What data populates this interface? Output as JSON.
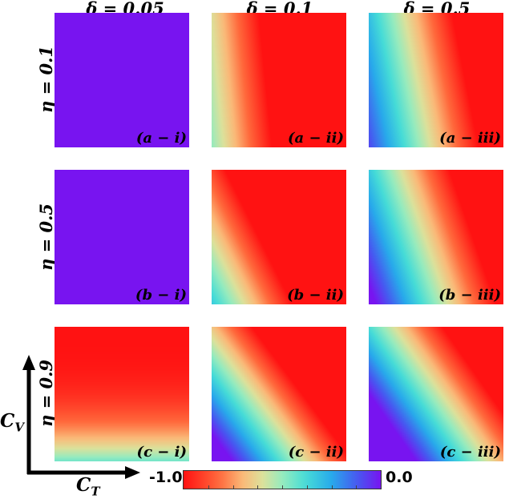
{
  "chart_data": {
    "type": "heatmap",
    "column_headers": [
      "δ = 0.05",
      "δ = 0.1",
      "δ = 0.5"
    ],
    "row_headers": [
      "η = 0.1",
      "η = 0.5",
      "η = 0.9"
    ],
    "xlabel": "C_T",
    "ylabel": "C_V",
    "colorbar": {
      "min_label": "-1.0",
      "max_label": "0.0",
      "range": [
        -1.0,
        0.0
      ],
      "colormap": "rainbow (red = -1.0, purple = 0.0)"
    },
    "panels": [
      {
        "label": "(a − i)",
        "row": 0,
        "col": 0,
        "boundary_x0": 4.0,
        "boundary_slope": 0.0
      },
      {
        "label": "(a − ii)",
        "row": 0,
        "col": 1,
        "boundary_x0": 0.45,
        "boundary_slope": 0.1
      },
      {
        "label": "(a − iii)",
        "row": 0,
        "col": 2,
        "boundary_x0": 0.82,
        "boundary_slope": 0.2
      },
      {
        "label": "(b − i)",
        "row": 1,
        "col": 0,
        "boundary_x0": 4.0,
        "boundary_slope": 0.0
      },
      {
        "label": "(b − ii)",
        "row": 1,
        "col": 1,
        "boundary_x0": 0.6,
        "boundary_slope": 0.5
      },
      {
        "label": "(b − iii)",
        "row": 1,
        "col": 2,
        "boundary_x0": 0.95,
        "boundary_slope": 0.35
      },
      {
        "label": "(c − i)",
        "row": 2,
        "col": 0,
        "boundary_x0": 0.0,
        "boundary_slope": 0.0,
        "vertical_only": true
      },
      {
        "label": "(c − ii)",
        "row": 2,
        "col": 1,
        "boundary_x0": 1.05,
        "boundary_slope": 0.75
      },
      {
        "label": "(c − iii)",
        "row": 2,
        "col": 2,
        "boundary_x0": 1.25,
        "boundary_slope": 0.7
      }
    ]
  }
}
